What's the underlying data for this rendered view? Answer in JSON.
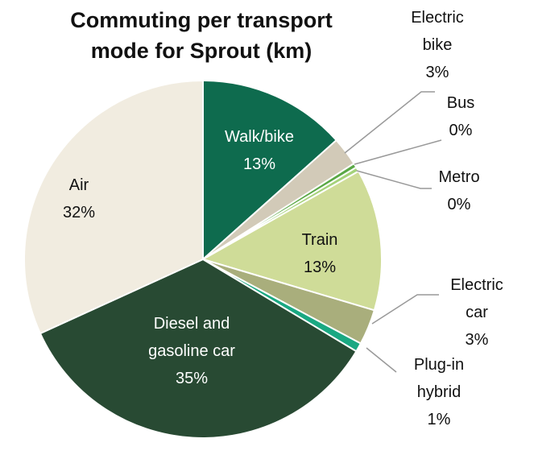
{
  "chart_data": {
    "type": "pie",
    "title": "Commuting per transport mode for Sprout (km)",
    "categories": [
      "Walk/bike",
      "Electric bike",
      "Bus",
      "Metro",
      "Train",
      "Electric car",
      "Plug-in hybrid",
      "Diesel and gasoline car",
      "Air"
    ],
    "values": [
      13.4,
      2.6,
      0.4,
      0.4,
      12.8,
      3.2,
      0.8,
      34.6,
      31.8
    ],
    "value_labels": [
      "13%",
      "3%",
      "0%",
      "0%",
      "13%",
      "3%",
      "1%",
      "35%",
      "32%"
    ],
    "colors": [
      "#0e6b4e",
      "#d2cab8",
      "#5aa845",
      "#a5d27a",
      "#cfdc98",
      "#a9ae7c",
      "#1aa882",
      "#284a33",
      "#f1ece0"
    ]
  }
}
